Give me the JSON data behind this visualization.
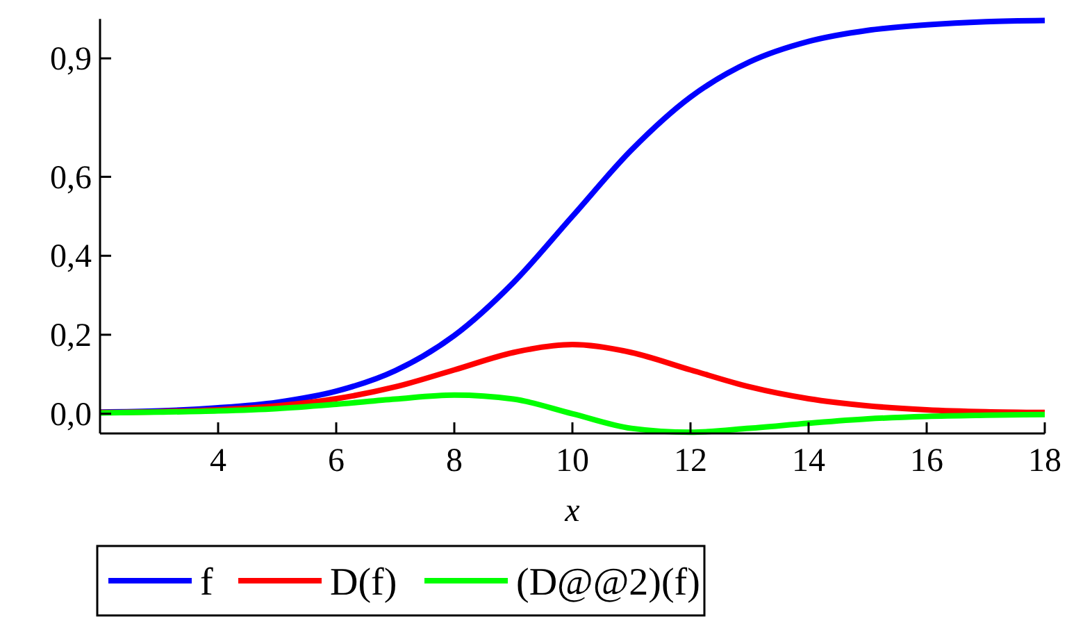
{
  "chart_data": {
    "type": "line",
    "xlabel": "x",
    "x": [
      2,
      3,
      4,
      5,
      6,
      7,
      8,
      9,
      10,
      11,
      12,
      13,
      14,
      15,
      16,
      17,
      18
    ],
    "xlim": [
      2,
      18
    ],
    "xticks": [
      4,
      6,
      8,
      10,
      12,
      14,
      16,
      18
    ],
    "ylim": [
      -0.05,
      1.0
    ],
    "yticks": [
      {
        "value": 0,
        "label": "0,0"
      },
      {
        "value": 0.2,
        "label": "0,2"
      },
      {
        "value": 0.4,
        "label": "0,4"
      },
      {
        "value": 0.6,
        "label": "0,6"
      },
      {
        "value": 0.9,
        "label": "0,9"
      }
    ],
    "grid": false,
    "legend": "bottom",
    "marker": "none",
    "line_style": "solid",
    "series": [
      {
        "name": "f",
        "color": "#0000ff",
        "values": [
          0.004,
          0.007,
          0.015,
          0.029,
          0.057,
          0.109,
          0.198,
          0.332,
          0.5,
          0.668,
          0.802,
          0.891,
          0.943,
          0.971,
          0.985,
          0.993,
          0.996
        ]
      },
      {
        "name": "D(f)",
        "color": "#ff0000",
        "values": [
          0.003,
          0.005,
          0.01,
          0.02,
          0.038,
          0.068,
          0.111,
          0.155,
          0.175,
          0.155,
          0.111,
          0.068,
          0.038,
          0.02,
          0.01,
          0.005,
          0.003
        ]
      },
      {
        "name": "(D@@2)(f)",
        "color": "#00ff00",
        "values": [
          0.002,
          0.004,
          0.007,
          0.013,
          0.024,
          0.037,
          0.047,
          0.037,
          0,
          -0.037,
          -0.047,
          -0.037,
          -0.024,
          -0.013,
          -0.007,
          -0.004,
          -0.002
        ]
      }
    ]
  }
}
